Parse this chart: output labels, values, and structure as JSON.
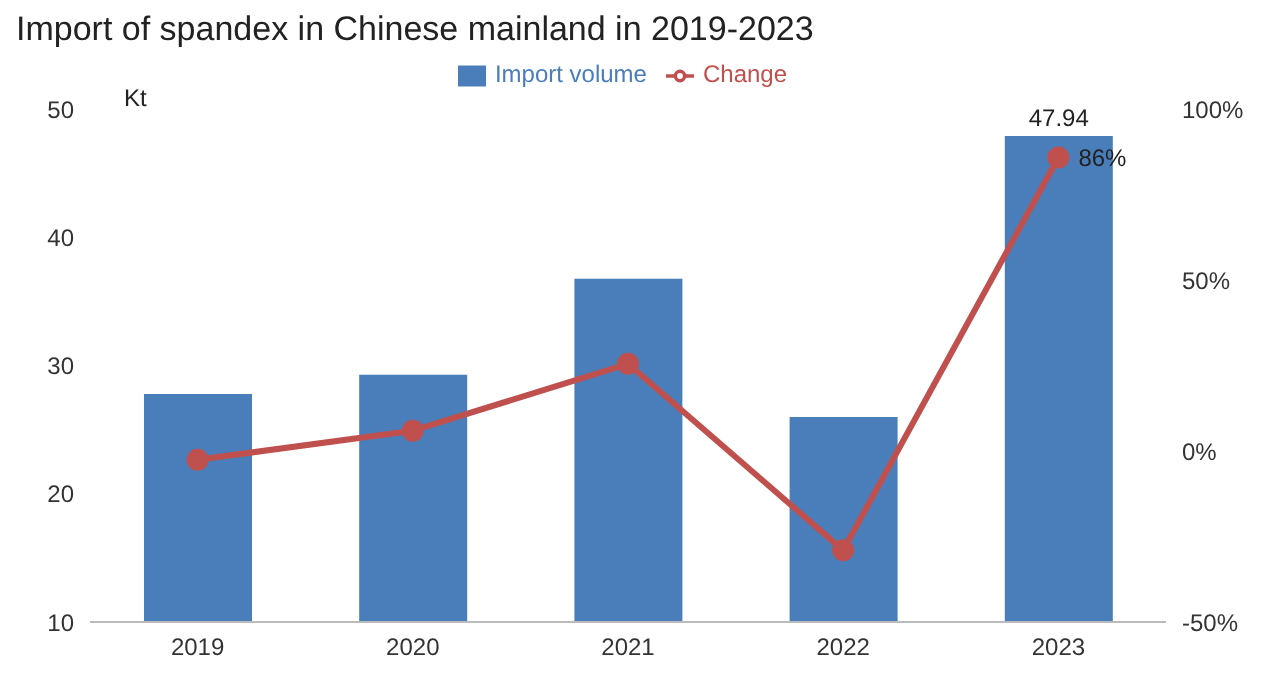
{
  "chart_data": {
    "type": "bar",
    "title": "Import of spandex in Chinese mainland in 2019-2023",
    "ylabel": "Kt",
    "categories": [
      "2019",
      "2020",
      "2021",
      "2022",
      "2023"
    ],
    "series": [
      {
        "name": "Import volume",
        "color": "#4a7ebb",
        "values": [
          27.8,
          29.3,
          36.8,
          26.0,
          47.94
        ],
        "value_labels": [
          null,
          null,
          null,
          null,
          "47.94"
        ]
      },
      {
        "name": "Change",
        "type": "line",
        "axis": "y2",
        "color": "#c0504d",
        "marker": "circle",
        "values": [
          -2.5,
          6,
          25.6,
          -29,
          86
        ],
        "value_labels": [
          null,
          null,
          null,
          null,
          "86%"
        ]
      }
    ],
    "ylim": [
      10,
      50
    ],
    "yticks": [
      10,
      20,
      30,
      40,
      50
    ],
    "y2lim": [
      -50,
      100
    ],
    "y2ticks": [
      {
        "value": -50,
        "label": "-50%"
      },
      {
        "value": 0,
        "label": "0%"
      },
      {
        "value": 50,
        "label": "50%"
      },
      {
        "value": 100,
        "label": "100%"
      }
    ],
    "grid": false,
    "legend": "top"
  }
}
